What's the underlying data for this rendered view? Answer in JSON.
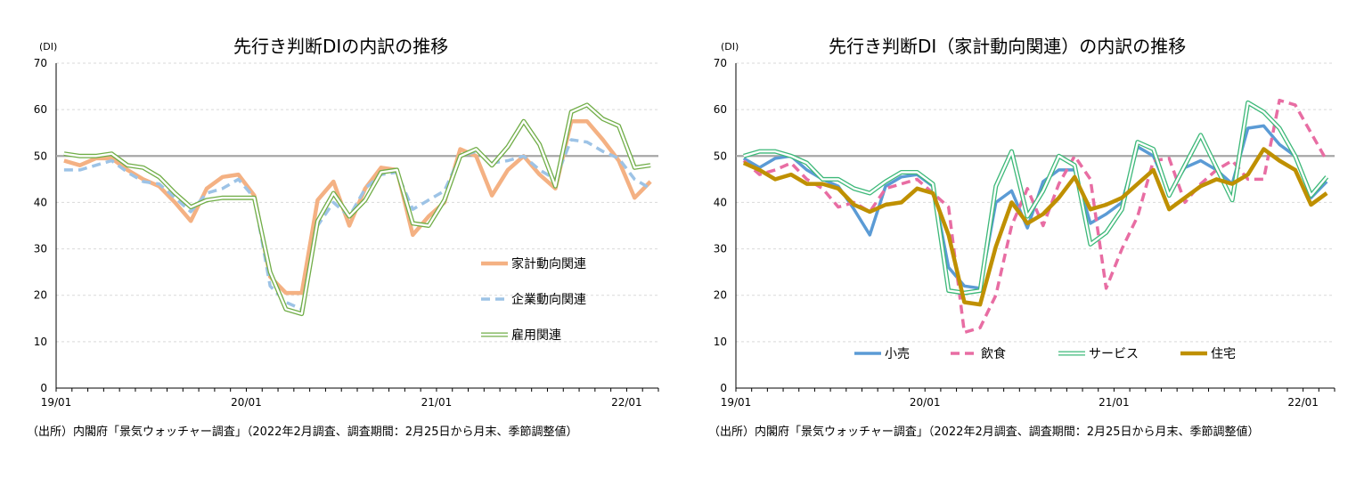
{
  "charts": [
    {
      "title": "先行き判断DIの内訳の推移",
      "unit_label": "(DI)",
      "source": "（出所）内閣府「景気ウォッチャー調査」（2022年2月調査、調査期間：2月25日から月末、季節調整値）"
    },
    {
      "title": "先行き判断DI（家計動向関連）の内訳の推移",
      "unit_label": "(DI)",
      "source": "（出所）内閣府「景気ウォッチャー調査」（2022年2月調査、調査期間：2月25日から月末、季節調整値）"
    }
  ],
  "chart_data": [
    {
      "type": "line",
      "x": [
        "19/01",
        "19/02",
        "19/03",
        "19/04",
        "19/05",
        "19/06",
        "19/07",
        "19/08",
        "19/09",
        "19/10",
        "19/11",
        "19/12",
        "20/01",
        "20/02",
        "20/03",
        "20/04",
        "20/05",
        "20/06",
        "20/07",
        "20/08",
        "20/09",
        "20/10",
        "20/11",
        "20/12",
        "21/01",
        "21/02",
        "21/03",
        "21/04",
        "21/05",
        "21/06",
        "21/07",
        "21/08",
        "21/09",
        "21/10",
        "21/11",
        "21/12",
        "22/01",
        "22/02"
      ],
      "x_tick_labels": [
        "19/01",
        "20/01",
        "21/01",
        "22/01"
      ],
      "y_ticks": [
        0,
        10,
        20,
        30,
        40,
        50,
        60,
        70
      ],
      "ylim": [
        0,
        70
      ],
      "reference_line": 50,
      "legend_position": "right-middle",
      "series": [
        {
          "name": "家計動向関連",
          "color": "#F4B183",
          "style": "thick",
          "values": [
            49,
            48,
            49.5,
            49.5,
            47,
            45,
            43.5,
            40,
            36,
            43,
            45.5,
            46,
            41.5,
            24,
            20.5,
            20.5,
            40.5,
            44.5,
            35,
            43,
            47.5,
            47,
            33,
            37,
            40,
            51.5,
            50,
            41.5,
            47,
            50,
            46,
            43,
            57.5,
            57.5,
            53.5,
            49,
            41,
            44.5
          ]
        },
        {
          "name": "企業動向関連",
          "color": "#9DC3E6",
          "style": "dashed",
          "values": [
            47,
            47,
            48,
            49,
            46.5,
            44.5,
            44,
            41,
            38,
            42,
            43,
            45,
            41,
            22,
            18.5,
            17,
            35,
            40,
            37,
            43,
            46,
            46.5,
            38.5,
            40.5,
            42.5,
            50,
            51,
            48.5,
            49,
            50,
            47,
            45,
            53.5,
            53,
            51,
            49.5,
            45,
            43
          ]
        },
        {
          "name": "雇用関連",
          "color": "#70AD47",
          "style": "double",
          "values": [
            50.5,
            50,
            50,
            50.5,
            48,
            47.5,
            45.5,
            42,
            39,
            40.5,
            41,
            41,
            41,
            25,
            17,
            16,
            36,
            42,
            37,
            40.5,
            46.5,
            47,
            35.5,
            35,
            40.5,
            50,
            51.5,
            48,
            52,
            57.5,
            52.5,
            43.5,
            59.5,
            61,
            58,
            56.5,
            47.5,
            48
          ]
        }
      ]
    },
    {
      "type": "line",
      "x": [
        "19/01",
        "19/02",
        "19/03",
        "19/04",
        "19/05",
        "19/06",
        "19/07",
        "19/08",
        "19/09",
        "19/10",
        "19/11",
        "19/12",
        "20/01",
        "20/02",
        "20/03",
        "20/04",
        "20/05",
        "20/06",
        "20/07",
        "20/08",
        "20/09",
        "20/10",
        "20/11",
        "20/12",
        "21/01",
        "21/02",
        "21/03",
        "21/04",
        "21/05",
        "21/06",
        "21/07",
        "21/08",
        "21/09",
        "21/10",
        "21/11",
        "21/12",
        "22/01",
        "22/02"
      ],
      "x_tick_labels": [
        "19/01",
        "20/01",
        "21/01",
        "22/01"
      ],
      "y_ticks": [
        0,
        10,
        20,
        30,
        40,
        50,
        60,
        70
      ],
      "ylim": [
        0,
        70
      ],
      "reference_line": 50,
      "legend_position": "bottom",
      "series": [
        {
          "name": "小売",
          "color": "#5B9BD5",
          "style": "solid",
          "values": [
            49.5,
            47.5,
            49.5,
            50,
            47,
            45,
            43.5,
            38.5,
            33,
            43.5,
            45.5,
            46,
            43.5,
            26,
            22,
            21.5,
            40,
            42.5,
            34.5,
            44.5,
            47,
            47,
            35.5,
            37.5,
            40,
            52,
            50,
            42,
            47.5,
            49,
            47,
            44,
            56,
            56.5,
            52.5,
            50,
            41,
            44.5
          ]
        },
        {
          "name": "飲食",
          "color": "#E86DA3",
          "style": "dashed",
          "values": [
            49,
            46,
            47,
            48.5,
            45,
            43,
            39,
            40,
            38,
            43,
            44,
            45,
            42,
            39,
            12,
            13,
            20,
            35,
            43,
            35,
            44,
            50,
            45,
            21.5,
            30,
            37,
            49,
            49.5,
            40,
            44,
            47,
            49,
            45,
            45,
            62,
            61,
            55,
            49
          ]
        },
        {
          "name": "サービス",
          "color": "#3CB878",
          "style": "double",
          "values": [
            50,
            51,
            51,
            50,
            48.5,
            45,
            45,
            43,
            42,
            44.5,
            46.5,
            46.5,
            44,
            21,
            20.5,
            21,
            43.5,
            51,
            37,
            42.5,
            50,
            48,
            31,
            33.5,
            38.5,
            53,
            51.5,
            41.5,
            48,
            54.5,
            47.5,
            40.5,
            61.5,
            59.5,
            56,
            50,
            41.5,
            45.5
          ]
        },
        {
          "name": "住宅",
          "color": "#BF9000",
          "style": "thick",
          "values": [
            48.5,
            47,
            45,
            46,
            44,
            44,
            43,
            39.5,
            38,
            39.5,
            40,
            43,
            42,
            33,
            18.5,
            18,
            30.5,
            40,
            35.5,
            37.5,
            41,
            45.5,
            38.5,
            39.5,
            41,
            44,
            47,
            38.5,
            41,
            43.5,
            45,
            44,
            46,
            51.5,
            49,
            47,
            39.5,
            42
          ]
        }
      ]
    }
  ]
}
